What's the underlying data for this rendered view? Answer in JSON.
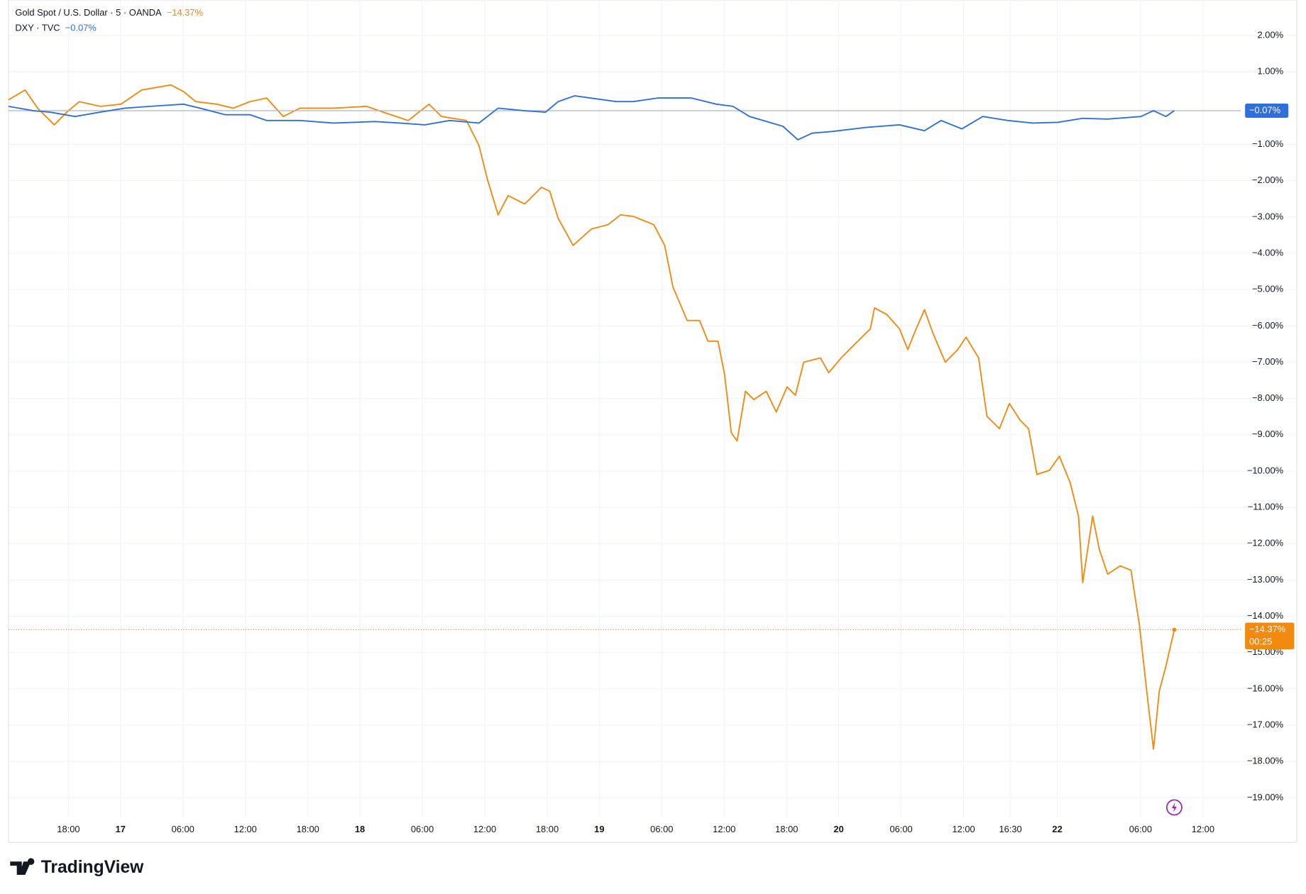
{
  "chart_data": {
    "type": "line",
    "brand": "TradingView",
    "xlim": [
      -5.76,
      112.64
    ],
    "ylim": [
      -20.23,
      2.98
    ],
    "grid": true,
    "xticks": [
      {
        "value": 0,
        "label": "18:00"
      },
      {
        "value": 5,
        "label": "17"
      },
      {
        "value": 11,
        "label": "06:00"
      },
      {
        "value": 17,
        "label": "12:00"
      },
      {
        "value": 23,
        "label": "18:00"
      },
      {
        "value": 28,
        "label": "18"
      },
      {
        "value": 34,
        "label": "06:00"
      },
      {
        "value": 40,
        "label": "12:00"
      },
      {
        "value": 46,
        "label": "18:00"
      },
      {
        "value": 51,
        "label": "19"
      },
      {
        "value": 57,
        "label": "06:00"
      },
      {
        "value": 63,
        "label": "12:00"
      },
      {
        "value": 69,
        "label": "18:00"
      },
      {
        "value": 74,
        "label": "20"
      },
      {
        "value": 80,
        "label": "06:00"
      },
      {
        "value": 86,
        "label": "12:00"
      },
      {
        "value": 90.5,
        "label": "16:30"
      },
      {
        "value": 95,
        "label": "22"
      },
      {
        "value": 103,
        "label": "06:00"
      },
      {
        "value": 109,
        "label": "12:00"
      }
    ],
    "yticks": [
      {
        "value": 2,
        "label": "2.00%"
      },
      {
        "value": 1,
        "label": "1.00%"
      },
      {
        "value": -1,
        "label": "−1.00%"
      },
      {
        "value": -2,
        "label": "−2.00%"
      },
      {
        "value": -3,
        "label": "−3.00%"
      },
      {
        "value": -4,
        "label": "−4.00%"
      },
      {
        "value": -5,
        "label": "−5.00%"
      },
      {
        "value": -6,
        "label": "−6.00%"
      },
      {
        "value": -7,
        "label": "−7.00%"
      },
      {
        "value": -8,
        "label": "−8.00%"
      },
      {
        "value": -9,
        "label": "−9.00%"
      },
      {
        "value": -10,
        "label": "−10.00%"
      },
      {
        "value": -11,
        "label": "−11.00%"
      },
      {
        "value": -12,
        "label": "−12.00%"
      },
      {
        "value": -13,
        "label": "−13.00%"
      },
      {
        "value": -14,
        "label": "−14.00%"
      },
      {
        "value": -15,
        "label": "−15.00%"
      },
      {
        "value": -16,
        "label": "−16.00%"
      },
      {
        "value": -17,
        "label": "−17.00%"
      },
      {
        "value": -18,
        "label": "−18.00%"
      },
      {
        "value": -19,
        "label": "−19.00%"
      }
    ],
    "series": [
      {
        "name": "Gold Spot / U.S. Dollar · 5 · OANDA",
        "color": "#f28a0f",
        "change_label": "−14.37%",
        "countdown": "00:25",
        "price_line": "dotted",
        "x": [
          -5.76,
          -4.16,
          -2.96,
          -1.36,
          -0.16,
          1.04,
          3.04,
          5.04,
          7.04,
          9.84,
          11.04,
          12.24,
          14.24,
          15.84,
          17.44,
          19.04,
          20.64,
          22.24,
          25.44,
          28.64,
          30.24,
          32.64,
          34.64,
          35.84,
          38.24,
          39.44,
          40.24,
          41.28,
          42.24,
          43.84,
          45.44,
          46.24,
          47.04,
          48.48,
          50.24,
          51.84,
          53.04,
          54.24,
          56.24,
          57.28,
          58.08,
          59.44,
          60.64,
          61.44,
          62.4,
          63.04,
          63.68,
          64.24,
          65.04,
          65.84,
          67.04,
          68,
          69.04,
          69.84,
          70.64,
          72.24,
          73.04,
          74.24,
          75.84,
          77.04,
          77.44,
          78.64,
          79.84,
          80.64,
          81.44,
          82.24,
          83.04,
          84.24,
          85.44,
          86.24,
          87.44,
          88.24,
          89.44,
          90.4,
          91.44,
          92.24,
          93.04,
          94.24,
          95.2,
          96.24,
          97.04,
          97.44,
          98.4,
          99.04,
          99.84,
          101.04,
          102.08,
          102.88,
          103.68,
          104.24,
          104.8,
          105.44,
          106.24
        ],
        "values": [
          0.23,
          0.5,
          0,
          -0.46,
          -0.11,
          0.18,
          0.05,
          0.11,
          0.5,
          0.64,
          0.46,
          0.18,
          0.11,
          0,
          0.18,
          0.28,
          -0.23,
          0,
          0,
          0.05,
          -0.11,
          -0.34,
          0.11,
          -0.23,
          -0.34,
          -1.03,
          -1.95,
          -2.94,
          -2.41,
          -2.64,
          -2.18,
          -2.29,
          -3.03,
          -3.78,
          -3.33,
          -3.21,
          -2.94,
          -2.98,
          -3.21,
          -3.78,
          -4.93,
          -5.85,
          -5.85,
          -6.42,
          -6.42,
          -7.34,
          -8.94,
          -9.17,
          -7.8,
          -8.03,
          -7.8,
          -8.37,
          -7.68,
          -7.91,
          -7.0,
          -6.88,
          -7.29,
          -6.88,
          -6.42,
          -6.08,
          -5.5,
          -5.69,
          -6.08,
          -6.65,
          -6.08,
          -5.55,
          -6.19,
          -7.0,
          -6.65,
          -6.31,
          -6.88,
          -8.49,
          -8.83,
          -8.14,
          -8.6,
          -8.83,
          -10.09,
          -9.98,
          -9.59,
          -10.32,
          -11.24,
          -13.07,
          -11.24,
          -12.16,
          -12.84,
          -12.61,
          -12.73,
          -14.22,
          -16.28,
          -17.66,
          -16.06,
          -15.37,
          -14.37
        ]
      },
      {
        "name": "DXY · TVC",
        "color": "#2f6fdc",
        "change_label": "−0.07%",
        "price_line": "solid",
        "x": [
          -5.76,
          -3.36,
          -1.76,
          0.64,
          3.04,
          5.44,
          7.84,
          11.04,
          12.64,
          15.04,
          17.44,
          19.04,
          22.24,
          25.44,
          29.44,
          31.84,
          34.24,
          36.64,
          39.44,
          41.28,
          43.84,
          45.84,
          47.04,
          48.64,
          52.64,
          54.24,
          56.64,
          59.84,
          62.24,
          63.84,
          65.44,
          68.64,
          70.08,
          71.44,
          73.44,
          76.64,
          79.84,
          82.24,
          83.84,
          85.84,
          87.84,
          90.24,
          92.64,
          95.04,
          97.44,
          99.84,
          103.04,
          104.24,
          105.44,
          106.24
        ],
        "values": [
          0.05,
          -0.07,
          -0.11,
          -0.23,
          -0.11,
          0,
          0.05,
          0.11,
          0,
          -0.18,
          -0.18,
          -0.34,
          -0.34,
          -0.41,
          -0.37,
          -0.41,
          -0.46,
          -0.34,
          -0.41,
          0,
          -0.07,
          -0.11,
          0.18,
          0.34,
          0.18,
          0.18,
          0.28,
          0.28,
          0.11,
          0.05,
          -0.23,
          -0.5,
          -0.87,
          -0.69,
          -0.64,
          -0.53,
          -0.46,
          -0.62,
          -0.34,
          -0.57,
          -0.23,
          -0.34,
          -0.41,
          -0.39,
          -0.28,
          -0.3,
          -0.23,
          -0.07,
          -0.23,
          -0.07
        ]
      }
    ]
  }
}
